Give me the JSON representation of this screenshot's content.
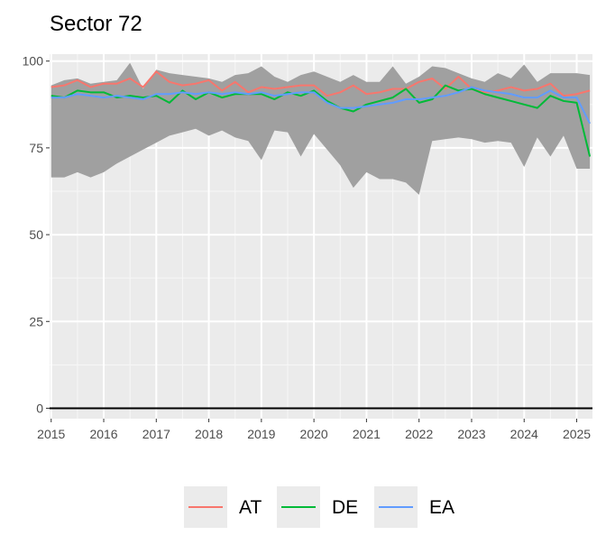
{
  "chart_data": {
    "type": "line",
    "title": "Sector 72",
    "xlabel": "",
    "ylabel": "",
    "xlim": [
      2014.97,
      2025.3
    ],
    "ylim": [
      -3,
      102
    ],
    "y_ticks": [
      0,
      25,
      50,
      75,
      100
    ],
    "x_ticks": [
      2015,
      2016,
      2017,
      2018,
      2019,
      2020,
      2021,
      2022,
      2023,
      2024,
      2025
    ],
    "x_tick_labels": [
      "2015",
      "2016",
      "2017",
      "2018",
      "2019",
      "2020",
      "2021",
      "2022",
      "2023",
      "2024",
      "2025"
    ],
    "grid": true,
    "hline": 0,
    "legend_position": "bottom",
    "x": [
      2015.0,
      2015.25,
      2015.5,
      2015.75,
      2016.0,
      2016.25,
      2016.5,
      2016.75,
      2017.0,
      2017.25,
      2017.5,
      2017.75,
      2018.0,
      2018.25,
      2018.5,
      2018.75,
      2019.0,
      2019.25,
      2019.5,
      2019.75,
      2020.0,
      2020.25,
      2020.5,
      2020.75,
      2021.0,
      2021.25,
      2021.5,
      2021.75,
      2022.0,
      2022.25,
      2022.5,
      2022.75,
      2023.0,
      2023.25,
      2023.5,
      2023.75,
      2024.0,
      2024.25,
      2024.5,
      2024.75,
      2025.0,
      2025.25
    ],
    "band": {
      "color": "#a0a0a0",
      "upper": [
        93,
        94.5,
        95,
        93.5,
        94,
        94.5,
        99.5,
        92,
        97.5,
        96.5,
        96,
        95.5,
        95,
        94,
        96,
        96.5,
        98.5,
        95.5,
        94,
        96,
        97,
        95.5,
        94,
        96,
        94,
        94,
        98.5,
        93.5,
        95.5,
        98.5,
        98,
        96.5,
        95,
        94,
        96.5,
        95,
        99,
        94,
        96.5,
        96.5,
        96.5,
        96
      ],
      "lower": [
        66.5,
        66.5,
        68,
        66.5,
        68,
        70.5,
        72.5,
        74.5,
        76.5,
        78.5,
        79.5,
        80.5,
        78.5,
        80,
        78,
        77,
        71.5,
        80,
        79.5,
        72.5,
        79,
        74.5,
        70,
        63.5,
        68,
        66,
        66,
        65,
        61.5,
        77,
        77.5,
        78,
        77.5,
        76.5,
        77,
        76.5,
        69.5,
        78,
        72.5,
        78.5,
        69,
        69
      ]
    },
    "series": [
      {
        "name": "AT",
        "color": "#F8766D",
        "values": [
          92.5,
          93,
          94.5,
          92.5,
          93.5,
          93.5,
          95,
          92.5,
          97,
          94,
          93,
          93.5,
          94.5,
          91.5,
          94,
          91,
          92.5,
          92,
          92.5,
          93,
          93,
          90,
          91,
          93,
          90.5,
          91,
          92,
          92,
          94,
          95,
          92,
          95.5,
          92,
          91,
          91.5,
          92.5,
          91.5,
          92,
          93.5,
          90,
          90.5,
          91.5
        ]
      },
      {
        "name": "DE",
        "color": "#00BA38",
        "values": [
          90,
          89.5,
          91.5,
          91,
          91,
          89.5,
          90,
          89.5,
          90,
          88,
          91.5,
          89,
          91,
          89.5,
          90.5,
          90.5,
          90.5,
          89,
          91,
          90,
          91.5,
          88.5,
          86.5,
          85.5,
          87.5,
          88.5,
          89.5,
          92,
          88,
          89,
          93,
          91.5,
          92,
          90.5,
          89.5,
          88.5,
          87.5,
          86.5,
          90,
          88.5,
          88,
          72.5
        ]
      },
      {
        "name": "EA",
        "color": "#619CFF",
        "values": [
          89.5,
          89.5,
          90.5,
          90,
          89.5,
          90,
          89.5,
          89,
          90.5,
          90.5,
          91,
          90.5,
          91,
          90.5,
          91,
          90.5,
          91,
          90,
          90.5,
          91,
          91,
          88,
          86.5,
          86.5,
          87,
          87.5,
          88,
          89,
          89,
          89.5,
          90,
          91,
          92.5,
          91.5,
          91,
          90.5,
          89.5,
          89.5,
          91.5,
          89.5,
          89.5,
          82
        ]
      }
    ]
  }
}
